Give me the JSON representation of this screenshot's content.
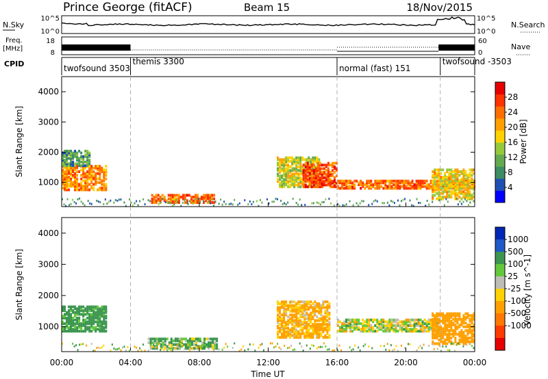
{
  "header": {
    "station": "Prince George (fitACF)",
    "beam": "Beam 15",
    "date": "18/Nov/2015"
  },
  "strips": {
    "nsky_label": "N.Sky",
    "nsky_ticks": [
      "10^5",
      "10^0"
    ],
    "nsearch_label": "N.Search",
    "nsearch_ticks": [
      "10^5",
      "10^0"
    ],
    "freq_label_1": "Freq.",
    "freq_label_2": "[MHz]",
    "freq_ticks": [
      "18",
      "8"
    ],
    "nave_label": "Nave",
    "nave_ticks": [
      "60",
      "0"
    ],
    "cpid_label": "CPID"
  },
  "cpid_modes": [
    {
      "label": "twofsound 3503",
      "start": 0,
      "end": 4.0
    },
    {
      "label": "themis 3300",
      "start": 4.0,
      "end": 16.0
    },
    {
      "label": "normal (fast) 151",
      "start": 16.0,
      "end": 22.0
    },
    {
      "label": "twofsound -3503",
      "start": 22.0,
      "end": 24.0
    }
  ],
  "colors": {
    "power": [
      "#0000ff",
      "#1f50b4",
      "#3c8c64",
      "#64aa50",
      "#96c83c",
      "#ffd200",
      "#ffa000",
      "#ff6e00",
      "#ff3200",
      "#e60000"
    ],
    "velocity": [
      "#0028b4",
      "#1e5ac8",
      "#3c9650",
      "#64c83c",
      "#bebeb4",
      "#ffd200",
      "#ffa000",
      "#ff7800",
      "#ff3c00",
      "#e60000"
    ],
    "scatter_ground": "#bebeb4"
  },
  "chart_data": [
    {
      "type": "heatmap",
      "panel": "power",
      "ylabel": "Slant Range [km]",
      "ylim": [
        200,
        4500
      ],
      "y_ticks": [
        1000,
        2000,
        3000,
        4000
      ],
      "xlim": [
        0,
        24
      ],
      "colorbar_label": "Power [dB]",
      "colorbar_ticks": [
        "4",
        "8",
        "12",
        "16",
        "20",
        "24",
        "28"
      ],
      "colorbar_range": [
        0,
        32
      ],
      "features": [
        {
          "t0": 0.0,
          "t1": 2.6,
          "r0": 800,
          "r1": 1600,
          "level": 22
        },
        {
          "t0": 0.0,
          "t1": 1.6,
          "r0": 1600,
          "r1": 2100,
          "level": 10
        },
        {
          "t0": 5.2,
          "t1": 8.8,
          "r0": 380,
          "r1": 650,
          "level": 24
        },
        {
          "t0": 12.5,
          "t1": 15.0,
          "r0": 900,
          "r1": 1900,
          "level": 16
        },
        {
          "t0": 14.0,
          "t1": 16.0,
          "r0": 900,
          "r1": 1700,
          "level": 26
        },
        {
          "t0": 16.0,
          "t1": 24.0,
          "r0": 850,
          "r1": 1150,
          "level": 24
        },
        {
          "t0": 21.5,
          "t1": 24.0,
          "r0": 500,
          "r1": 1500,
          "level": 18
        }
      ]
    },
    {
      "type": "heatmap",
      "panel": "velocity",
      "ylabel": "Slant Range [km]",
      "ylim": [
        200,
        4500
      ],
      "y_ticks": [
        1000,
        2000,
        3000,
        4000
      ],
      "xlabel": "Time UT",
      "x_ticks": [
        "00:00",
        "04:00",
        "08:00",
        "12:00",
        "16:00",
        "20:00",
        "00:00"
      ],
      "xlim": [
        0,
        24
      ],
      "colorbar_label": "Velocity [m s^-1]",
      "colorbar_ticks": [
        "1000",
        "500",
        "100",
        "25",
        "-25",
        "-100",
        "-500",
        "-1000"
      ],
      "features": [
        {
          "t0": 0.0,
          "t1": 2.6,
          "r0": 900,
          "r1": 1700,
          "velocity": 200
        },
        {
          "t0": 5.0,
          "t1": 9.0,
          "r0": 350,
          "r1": 700,
          "velocity": 100
        },
        {
          "t0": 12.5,
          "t1": 15.5,
          "r0": 700,
          "r1": 1900,
          "velocity": -150
        },
        {
          "t0": 16.0,
          "t1": 22.0,
          "r0": 900,
          "r1": 1300,
          "velocity": 0
        },
        {
          "t0": 21.5,
          "t1": 24.0,
          "r0": 500,
          "r1": 1500,
          "velocity": -300
        }
      ]
    }
  ]
}
